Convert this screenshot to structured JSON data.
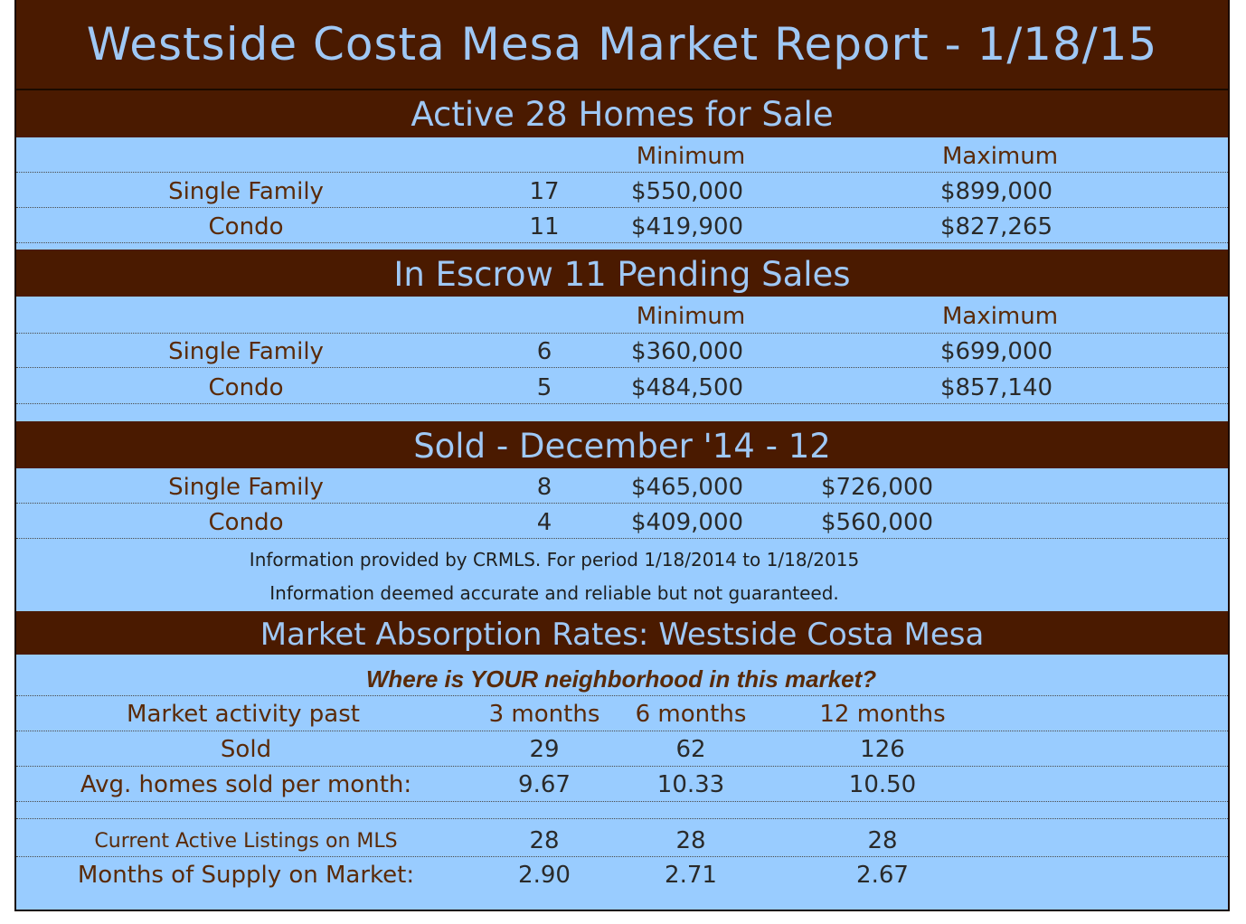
{
  "title": "Westside Costa Mesa Market Report - 1/18/15",
  "active": {
    "heading": "Active  28 Homes for Sale",
    "col_min": "Minimum",
    "col_max": "Maximum",
    "rows": [
      {
        "label": "Single Family",
        "count": "17",
        "min": "$550,000",
        "max": "$899,000"
      },
      {
        "label": "Condo",
        "count": "11",
        "min": "$419,900",
        "max": "$827,265"
      }
    ]
  },
  "escrow": {
    "heading": "In Escrow 11 Pending Sales",
    "col_min": "Minimum",
    "col_max": "Maximum",
    "rows": [
      {
        "label": "Single Family",
        "count": "6",
        "min": "$360,000",
        "max": "$699,000"
      },
      {
        "label": "Condo",
        "count": "5",
        "min": "$484,500",
        "max": "$857,140"
      }
    ]
  },
  "sold": {
    "heading": "Sold  - December '14  - 12",
    "rows": [
      {
        "label": "Single Family",
        "count": "8",
        "min": "$465,000",
        "max": "$726,000"
      },
      {
        "label": "Condo",
        "count": "4",
        "min": "$409,000",
        "max": "$560,000"
      }
    ],
    "note1": "Information provided by CRMLS.  For period 1/18/2014 to 1/18/2015",
    "note2": "Information deemed accurate and reliable but not guaranteed."
  },
  "absorption": {
    "heading": "Market Absorption Rates:  Westside Costa Mesa",
    "tagline": "Where is YOUR neighborhood in this market?",
    "header_label": "Market activity past",
    "periods": [
      "3 months",
      "6 months",
      "12 months"
    ],
    "rows": [
      {
        "label": "Sold",
        "values": [
          "29",
          "62",
          "126"
        ]
      },
      {
        "label": "Avg. homes sold per month:",
        "values": [
          "9.67",
          "10.33",
          "10.50"
        ]
      },
      {
        "label": "Current Active Listings on MLS",
        "values": [
          "28",
          "28",
          "28"
        ]
      },
      {
        "label": "Months of Supply on Market:",
        "values": [
          "2.90",
          "2.71",
          "2.67"
        ]
      }
    ]
  },
  "colors": {
    "band": "#4a1a00",
    "body": "#99ccff",
    "band_text": "#9fc8f5",
    "text": "#5a2a08"
  }
}
